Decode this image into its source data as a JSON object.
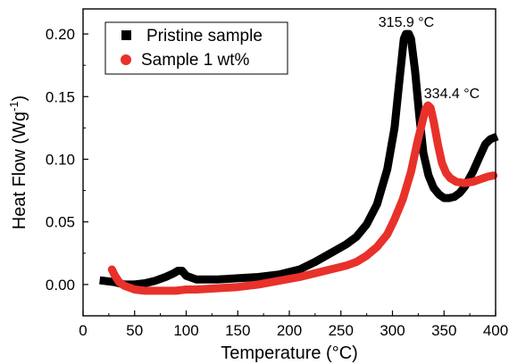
{
  "chart_data": {
    "type": "line",
    "xlabel": "Temperature (°C)",
    "ylabel_main": "Heat Flow (Wg",
    "ylabel_sup": "-1",
    "ylabel_close": ")",
    "xlim": [
      0,
      400
    ],
    "ylim": [
      -0.025,
      0.22
    ],
    "x_ticks": [
      0,
      50,
      100,
      150,
      200,
      250,
      300,
      350,
      400
    ],
    "x_tick_labels": [
      "0",
      "50",
      "100",
      "150",
      "200",
      "250",
      "300",
      "350",
      "400"
    ],
    "y_ticks": [
      0.0,
      0.05,
      0.1,
      0.15,
      0.2
    ],
    "y_tick_labels": [
      "0.00",
      "0.05",
      "0.10",
      "0.15",
      "0.20"
    ],
    "grid": false,
    "legend_position": "top-left",
    "series": [
      {
        "name": "Pristine sample",
        "color": "#000000",
        "marker": "square",
        "points": [
          [
            20,
            0.003
          ],
          [
            30,
            0.002
          ],
          [
            40,
            0.0
          ],
          [
            50,
            0.0
          ],
          [
            60,
            0.001
          ],
          [
            70,
            0.003
          ],
          [
            80,
            0.006
          ],
          [
            88,
            0.009
          ],
          [
            92,
            0.011
          ],
          [
            96,
            0.011
          ],
          [
            100,
            0.007
          ],
          [
            110,
            0.004
          ],
          [
            130,
            0.004
          ],
          [
            150,
            0.005
          ],
          [
            170,
            0.006
          ],
          [
            190,
            0.008
          ],
          [
            210,
            0.012
          ],
          [
            225,
            0.018
          ],
          [
            240,
            0.025
          ],
          [
            255,
            0.032
          ],
          [
            265,
            0.038
          ],
          [
            275,
            0.048
          ],
          [
            285,
            0.064
          ],
          [
            295,
            0.092
          ],
          [
            302,
            0.125
          ],
          [
            307,
            0.165
          ],
          [
            311,
            0.196
          ],
          [
            313,
            0.2
          ],
          [
            315.9,
            0.2
          ],
          [
            318,
            0.196
          ],
          [
            322,
            0.17
          ],
          [
            326,
            0.135
          ],
          [
            330,
            0.105
          ],
          [
            335,
            0.087
          ],
          [
            340,
            0.077
          ],
          [
            345,
            0.072
          ],
          [
            350,
            0.069
          ],
          [
            355,
            0.069
          ],
          [
            360,
            0.07
          ],
          [
            365,
            0.073
          ],
          [
            370,
            0.078
          ],
          [
            378,
            0.09
          ],
          [
            385,
            0.103
          ],
          [
            390,
            0.112
          ],
          [
            395,
            0.116
          ],
          [
            398,
            0.117
          ]
        ]
      },
      {
        "name": "Sample 1 wt%",
        "color": "#e8312a",
        "marker": "circle",
        "points": [
          [
            28,
            0.012
          ],
          [
            31,
            0.007
          ],
          [
            35,
            0.002
          ],
          [
            40,
            -0.001
          ],
          [
            50,
            -0.004
          ],
          [
            60,
            -0.005
          ],
          [
            70,
            -0.005
          ],
          [
            80,
            -0.005
          ],
          [
            90,
            -0.005
          ],
          [
            100,
            -0.004
          ],
          [
            110,
            -0.004
          ],
          [
            130,
            -0.003
          ],
          [
            150,
            -0.002
          ],
          [
            170,
            0.0
          ],
          [
            190,
            0.003
          ],
          [
            210,
            0.006
          ],
          [
            225,
            0.009
          ],
          [
            240,
            0.012
          ],
          [
            255,
            0.015
          ],
          [
            265,
            0.018
          ],
          [
            275,
            0.023
          ],
          [
            285,
            0.03
          ],
          [
            295,
            0.04
          ],
          [
            302,
            0.052
          ],
          [
            310,
            0.068
          ],
          [
            318,
            0.09
          ],
          [
            324,
            0.113
          ],
          [
            329,
            0.13
          ],
          [
            332,
            0.14
          ],
          [
            334.4,
            0.143
          ],
          [
            337,
            0.141
          ],
          [
            340,
            0.13
          ],
          [
            344,
            0.112
          ],
          [
            348,
            0.097
          ],
          [
            352,
            0.089
          ],
          [
            356,
            0.085
          ],
          [
            362,
            0.082
          ],
          [
            370,
            0.081
          ],
          [
            378,
            0.082
          ],
          [
            385,
            0.084
          ],
          [
            392,
            0.086
          ],
          [
            398,
            0.087
          ]
        ]
      }
    ],
    "annotations": [
      {
        "text": "315.9 °C",
        "x": 315.9,
        "y": 0.2
      },
      {
        "text": "334.4 °C",
        "x": 334.4,
        "y": 0.143
      }
    ]
  }
}
